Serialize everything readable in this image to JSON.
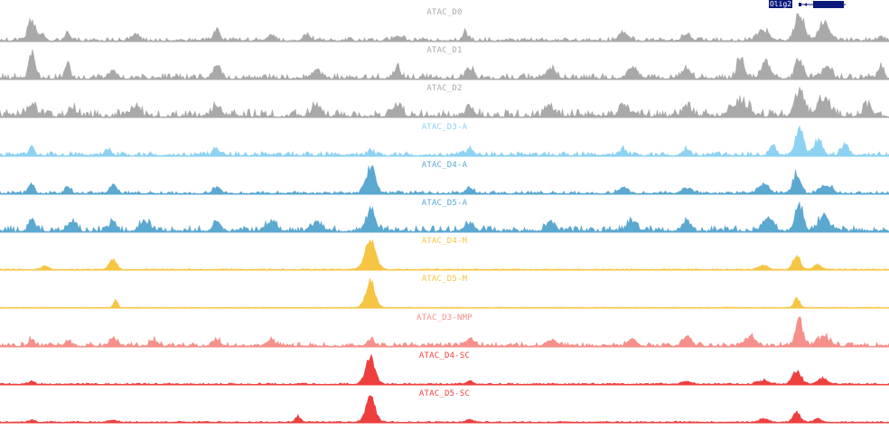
{
  "gene": {
    "name": "Olig2",
    "color": "#0b1a7a"
  },
  "tracks": [
    {
      "id": "d0",
      "label": "ATAC_D0",
      "color": "#a9a9a9",
      "peaks": [
        [
          35,
          0.75,
          4
        ],
        [
          47,
          0.22,
          3
        ],
        [
          75,
          0.3,
          3
        ],
        [
          150,
          0.22,
          4
        ],
        [
          240,
          0.45,
          3
        ],
        [
          300,
          0.18,
          4
        ],
        [
          340,
          0.2,
          4
        ],
        [
          440,
          0.18,
          5
        ],
        [
          515,
          0.3,
          3
        ],
        [
          690,
          0.3,
          5
        ],
        [
          760,
          0.2,
          5
        ],
        [
          845,
          0.35,
          6
        ],
        [
          885,
          1.0,
          5
        ],
        [
          912,
          0.65,
          6
        ],
        [
          975,
          0.15,
          3
        ]
      ],
      "noise": 0.13,
      "seed": 3
    },
    {
      "id": "d1",
      "label": "ATAC_D1",
      "color": "#a9a9a9",
      "peaks": [
        [
          35,
          1.0,
          3
        ],
        [
          75,
          0.45,
          3
        ],
        [
          125,
          0.3,
          4
        ],
        [
          240,
          0.45,
          4
        ],
        [
          350,
          0.3,
          5
        ],
        [
          440,
          0.35,
          4
        ],
        [
          520,
          0.35,
          4
        ],
        [
          610,
          0.35,
          5
        ],
        [
          700,
          0.4,
          5
        ],
        [
          760,
          0.35,
          4
        ],
        [
          820,
          0.75,
          4
        ],
        [
          848,
          0.6,
          5
        ],
        [
          885,
          0.65,
          4
        ],
        [
          915,
          0.4,
          5
        ],
        [
          975,
          0.5,
          3
        ]
      ],
      "noise": 0.2,
      "seed": 7
    },
    {
      "id": "d2",
      "label": "ATAC_D2",
      "color": "#a9a9a9",
      "peaks": [
        [
          35,
          0.45,
          4
        ],
        [
          80,
          0.35,
          4
        ],
        [
          150,
          0.3,
          5
        ],
        [
          240,
          0.35,
          5
        ],
        [
          350,
          0.35,
          5
        ],
        [
          440,
          0.3,
          5
        ],
        [
          520,
          0.3,
          5
        ],
        [
          610,
          0.3,
          5
        ],
        [
          690,
          0.35,
          5
        ],
        [
          760,
          0.35,
          5
        ],
        [
          820,
          0.55,
          8
        ],
        [
          885,
          1.0,
          5
        ],
        [
          912,
          0.65,
          7
        ],
        [
          960,
          0.35,
          5
        ]
      ],
      "noise": 0.28,
      "seed": 11
    },
    {
      "id": "d3a",
      "label": "ATAC_D3-A",
      "color": "#8ed2f2",
      "peaks": [
        [
          35,
          0.3,
          3
        ],
        [
          120,
          0.22,
          3
        ],
        [
          240,
          0.22,
          4
        ],
        [
          410,
          0.2,
          3
        ],
        [
          520,
          0.2,
          4
        ],
        [
          690,
          0.2,
          4
        ],
        [
          760,
          0.25,
          4
        ],
        [
          855,
          0.4,
          3
        ],
        [
          885,
          0.95,
          4
        ],
        [
          905,
          0.55,
          5
        ],
        [
          935,
          0.35,
          4
        ]
      ],
      "noise": 0.15,
      "seed": 13
    },
    {
      "id": "d4a",
      "label": "ATAC_D4-A",
      "color": "#5ba8d0",
      "peaks": [
        [
          35,
          0.35,
          3
        ],
        [
          75,
          0.3,
          3
        ],
        [
          125,
          0.3,
          4
        ],
        [
          240,
          0.22,
          4
        ],
        [
          410,
          0.95,
          5
        ],
        [
          520,
          0.2,
          4
        ],
        [
          690,
          0.2,
          5
        ],
        [
          760,
          0.2,
          5
        ],
        [
          845,
          0.3,
          6
        ],
        [
          882,
          0.7,
          4
        ],
        [
          915,
          0.3,
          6
        ]
      ],
      "noise": 0.1,
      "seed": 17
    },
    {
      "id": "d5a",
      "label": "ATAC_D5-A",
      "color": "#5ba8d0",
      "peaks": [
        [
          35,
          0.55,
          3
        ],
        [
          80,
          0.4,
          4
        ],
        [
          125,
          0.45,
          3
        ],
        [
          160,
          0.35,
          5
        ],
        [
          240,
          0.4,
          4
        ],
        [
          300,
          0.3,
          5
        ],
        [
          350,
          0.3,
          5
        ],
        [
          410,
          0.75,
          5
        ],
        [
          520,
          0.3,
          5
        ],
        [
          610,
          0.35,
          5
        ],
        [
          700,
          0.35,
          5
        ],
        [
          760,
          0.3,
          5
        ],
        [
          850,
          0.5,
          6
        ],
        [
          885,
          1.0,
          4
        ],
        [
          912,
          0.5,
          6
        ]
      ],
      "noise": 0.22,
      "seed": 19
    },
    {
      "id": "d4m",
      "label": "ATAC_D4-M",
      "color": "#f6c544",
      "peaks": [
        [
          50,
          0.12,
          4
        ],
        [
          125,
          0.35,
          4
        ],
        [
          410,
          1.0,
          6
        ],
        [
          845,
          0.15,
          5
        ],
        [
          882,
          0.5,
          4
        ],
        [
          905,
          0.2,
          4
        ]
      ],
      "noise": 0.03,
      "seed": 23
    },
    {
      "id": "d5m",
      "label": "ATAC_D5-M",
      "color": "#f6c544",
      "peaks": [
        [
          128,
          0.3,
          2
        ],
        [
          410,
          1.0,
          5
        ],
        [
          882,
          0.35,
          3
        ]
      ],
      "noise": 0.015,
      "seed": 29
    },
    {
      "id": "d3nmp",
      "label": "ATAC_D3-NMP",
      "color": "#f5908a",
      "peaks": [
        [
          35,
          0.25,
          3
        ],
        [
          75,
          0.2,
          3
        ],
        [
          125,
          0.3,
          4
        ],
        [
          170,
          0.2,
          4
        ],
        [
          240,
          0.22,
          4
        ],
        [
          300,
          0.2,
          5
        ],
        [
          410,
          0.25,
          4
        ],
        [
          520,
          0.25,
          5
        ],
        [
          610,
          0.25,
          5
        ],
        [
          700,
          0.25,
          5
        ],
        [
          760,
          0.3,
          5
        ],
        [
          830,
          0.35,
          6
        ],
        [
          885,
          0.9,
          4
        ],
        [
          912,
          0.35,
          6
        ]
      ],
      "noise": 0.15,
      "seed": 31
    },
    {
      "id": "d4sc",
      "label": "ATAC_D4-SC",
      "color": "#ee3f3f",
      "peaks": [
        [
          35,
          0.12,
          3
        ],
        [
          410,
          0.95,
          5
        ],
        [
          520,
          0.1,
          4
        ],
        [
          760,
          0.1,
          5
        ],
        [
          845,
          0.15,
          6
        ],
        [
          882,
          0.45,
          5
        ],
        [
          910,
          0.2,
          5
        ]
      ],
      "noise": 0.05,
      "seed": 37
    },
    {
      "id": "d5sc",
      "label": "ATAC_D5-SC",
      "color": "#ee3f3f",
      "peaks": [
        [
          35,
          0.08,
          3
        ],
        [
          125,
          0.08,
          4
        ],
        [
          330,
          0.2,
          3
        ],
        [
          410,
          0.9,
          5
        ],
        [
          520,
          0.08,
          4
        ],
        [
          845,
          0.12,
          5
        ],
        [
          882,
          0.35,
          4
        ],
        [
          905,
          0.12,
          4
        ]
      ],
      "noise": 0.04,
      "seed": 41
    }
  ]
}
